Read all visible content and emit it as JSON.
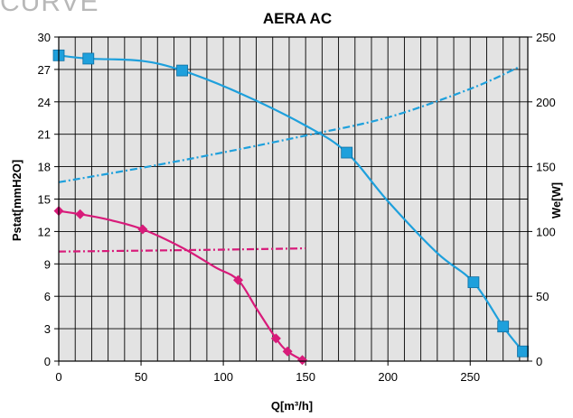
{
  "page_label": "CURVE",
  "chart_data": {
    "type": "line",
    "title": "AERA AC",
    "xlabel": "Q[m³/h]",
    "ylabel": "Pstat[mmH2O]",
    "y2label": "We[W]",
    "xlim": [
      0,
      285
    ],
    "ylim": [
      0,
      30
    ],
    "y2lim": [
      0,
      250
    ],
    "x_ticks": [
      0,
      50,
      100,
      150,
      200,
      250
    ],
    "y_ticks": [
      0,
      3,
      6,
      9,
      12,
      15,
      18,
      21,
      24,
      27,
      30
    ],
    "y2_ticks": [
      0,
      50,
      100,
      150,
      200,
      250
    ],
    "grid": true,
    "series": [
      {
        "axis": "left",
        "style": "solid",
        "marker": "square",
        "color": "#1ea0dc",
        "x": [
          0,
          18,
          50,
          75,
          110,
          150,
          175,
          200,
          230,
          252,
          270,
          282
        ],
        "y": [
          28.3,
          28.0,
          27.8,
          26.9,
          24.8,
          21.8,
          19.3,
          14.8,
          10.0,
          7.3,
          3.2,
          0.9
        ],
        "marker_idx": [
          0,
          1,
          3,
          6,
          9,
          10,
          11
        ]
      },
      {
        "axis": "right",
        "style": "dashdot",
        "marker": "none",
        "color": "#1ea0dc",
        "x": [
          0,
          50,
          100,
          150,
          200,
          250,
          280
        ],
        "y": [
          138,
          149,
          161,
          174,
          188,
          210,
          227
        ]
      },
      {
        "axis": "left",
        "style": "solid",
        "marker": "diamond",
        "color": "#d81b7a",
        "x": [
          0,
          13,
          30,
          51,
          75,
          95,
          109,
          120,
          132,
          139,
          148
        ],
        "y": [
          13.9,
          13.6,
          13.1,
          12.2,
          10.5,
          8.7,
          7.5,
          4.9,
          2.1,
          0.9,
          0.1
        ],
        "marker_idx": [
          0,
          1,
          3,
          6,
          8,
          9,
          10
        ]
      },
      {
        "axis": "right",
        "style": "dashdot",
        "marker": "none",
        "color": "#d81b7a",
        "x": [
          0,
          50,
          100,
          150
        ],
        "y": [
          84.5,
          85.2,
          86.0,
          87.0
        ]
      }
    ]
  }
}
